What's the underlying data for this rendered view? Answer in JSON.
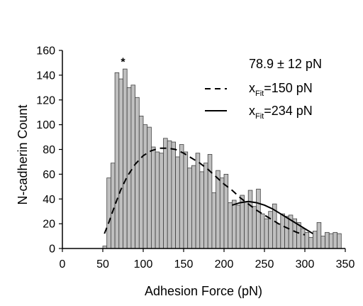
{
  "chart_data": {
    "type": "bar",
    "title": "",
    "xlabel": "Adhesion Force (pN)",
    "ylabel": "N-cadherin Count",
    "xlim": [
      0,
      350
    ],
    "ylim": [
      0,
      160
    ],
    "xticks": [
      0,
      50,
      100,
      150,
      200,
      250,
      300,
      350
    ],
    "yticks": [
      0,
      20,
      40,
      60,
      80,
      100,
      120,
      140,
      160
    ],
    "grid": false,
    "legend_position": "top-right",
    "bin_width": 5,
    "bins": [
      {
        "x": 50,
        "y": 2
      },
      {
        "x": 55,
        "y": 57
      },
      {
        "x": 60,
        "y": 69
      },
      {
        "x": 65,
        "y": 142
      },
      {
        "x": 70,
        "y": 137
      },
      {
        "x": 75,
        "y": 145
      },
      {
        "x": 80,
        "y": 130
      },
      {
        "x": 85,
        "y": 132
      },
      {
        "x": 90,
        "y": 122
      },
      {
        "x": 95,
        "y": 107
      },
      {
        "x": 100,
        "y": 100
      },
      {
        "x": 105,
        "y": 98
      },
      {
        "x": 110,
        "y": 82
      },
      {
        "x": 115,
        "y": 78
      },
      {
        "x": 120,
        "y": 77
      },
      {
        "x": 125,
        "y": 89
      },
      {
        "x": 130,
        "y": 87
      },
      {
        "x": 135,
        "y": 86
      },
      {
        "x": 140,
        "y": 74
      },
      {
        "x": 145,
        "y": 84
      },
      {
        "x": 150,
        "y": 78
      },
      {
        "x": 155,
        "y": 65
      },
      {
        "x": 160,
        "y": 67
      },
      {
        "x": 165,
        "y": 77
      },
      {
        "x": 170,
        "y": 62
      },
      {
        "x": 175,
        "y": 69
      },
      {
        "x": 180,
        "y": 76
      },
      {
        "x": 185,
        "y": 45
      },
      {
        "x": 190,
        "y": 63
      },
      {
        "x": 195,
        "y": 57
      },
      {
        "x": 200,
        "y": 60
      },
      {
        "x": 205,
        "y": 37
      },
      {
        "x": 210,
        "y": 39
      },
      {
        "x": 215,
        "y": 35
      },
      {
        "x": 220,
        "y": 43
      },
      {
        "x": 225,
        "y": 38
      },
      {
        "x": 230,
        "y": 47
      },
      {
        "x": 235,
        "y": 34
      },
      {
        "x": 240,
        "y": 48
      },
      {
        "x": 245,
        "y": 28
      },
      {
        "x": 250,
        "y": 24
      },
      {
        "x": 255,
        "y": 30
      },
      {
        "x": 260,
        "y": 36
      },
      {
        "x": 265,
        "y": 20
      },
      {
        "x": 270,
        "y": 28
      },
      {
        "x": 275,
        "y": 26
      },
      {
        "x": 280,
        "y": 27
      },
      {
        "x": 285,
        "y": 24
      },
      {
        "x": 290,
        "y": 21
      },
      {
        "x": 295,
        "y": 16
      },
      {
        "x": 300,
        "y": 13
      },
      {
        "x": 305,
        "y": 9
      },
      {
        "x": 310,
        "y": 14
      },
      {
        "x": 315,
        "y": 21
      },
      {
        "x": 320,
        "y": 10
      },
      {
        "x": 325,
        "y": 13
      },
      {
        "x": 330,
        "y": 12
      },
      {
        "x": 335,
        "y": 13
      },
      {
        "x": 340,
        "y": 12
      }
    ],
    "annotations": [
      {
        "text": "*",
        "x": 75,
        "y": 150
      }
    ],
    "legend": {
      "header": "78.9 ± 12 pN",
      "entries": [
        {
          "prefix": "x",
          "sub": "Fit",
          "suffix": "=150 pN",
          "style": "dashed"
        },
        {
          "prefix": "x",
          "sub": "Fit",
          "suffix": "=234 pN",
          "style": "solid"
        }
      ]
    },
    "series": [
      {
        "style": "dashed",
        "points": [
          [
            52,
            12
          ],
          [
            58,
            22
          ],
          [
            65,
            35
          ],
          [
            72,
            47
          ],
          [
            80,
            58
          ],
          [
            90,
            68
          ],
          [
            100,
            75
          ],
          [
            110,
            79
          ],
          [
            120,
            81
          ],
          [
            130,
            81
          ],
          [
            140,
            80
          ],
          [
            150,
            77
          ],
          [
            160,
            73
          ],
          [
            170,
            69
          ],
          [
            180,
            64
          ],
          [
            190,
            58
          ],
          [
            200,
            52
          ],
          [
            210,
            47
          ],
          [
            220,
            41
          ],
          [
            230,
            36
          ],
          [
            240,
            31
          ],
          [
            250,
            27
          ],
          [
            260,
            23
          ],
          [
            270,
            19
          ],
          [
            280,
            16
          ],
          [
            290,
            13
          ],
          [
            300,
            11
          ]
        ]
      },
      {
        "style": "solid",
        "points": [
          [
            210,
            35
          ],
          [
            220,
            37
          ],
          [
            230,
            38
          ],
          [
            240,
            37
          ],
          [
            250,
            35
          ],
          [
            260,
            32
          ],
          [
            270,
            28
          ],
          [
            280,
            24
          ],
          [
            290,
            20
          ],
          [
            300,
            16
          ],
          [
            310,
            12
          ]
        ]
      }
    ],
    "colors": {
      "bar_fill": "#bfbfbf",
      "bar_stroke": "#404040",
      "axis": "#000000",
      "fit_line": "#000000"
    }
  }
}
